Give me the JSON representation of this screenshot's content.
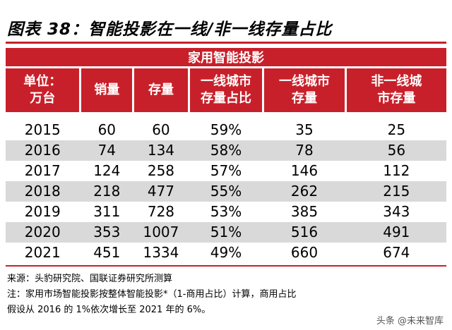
{
  "title": "图表 38：智能投影在一线/非一线存量占比",
  "band_label": "家用智能投影",
  "headers": [
    "单位：\n万台",
    "销量",
    "存量",
    "一线城市\n存量占比",
    "一线城市\n存量",
    "非一线城\n市存量"
  ],
  "rows": [
    [
      "2015",
      "60",
      "60",
      "59%",
      "35",
      "25"
    ],
    [
      "2016",
      "74",
      "134",
      "58%",
      "78",
      "56"
    ],
    [
      "2017",
      "124",
      "258",
      "57%",
      "146",
      "112"
    ],
    [
      "2018",
      "218",
      "477",
      "55%",
      "262",
      "215"
    ],
    [
      "2019",
      "311",
      "728",
      "53%",
      "385",
      "343"
    ],
    [
      "2020",
      "353",
      "1007",
      "51%",
      "516",
      "491"
    ],
    [
      "2021",
      "451",
      "1334",
      "49%",
      "660",
      "674"
    ]
  ],
  "source": "来源：头豹研究院、国联证券研究所测算",
  "note_line1": "注：家用市场智能投影按整体智能投影*（1-商用占比）计算，商用占比",
  "note_line2": "假设从 2016 的 1%依次增长至 2021 年的 6%。",
  "watermark": "头条 @未来智库",
  "colors": {
    "accent": "#c8202a",
    "row_alt": "#d9d9d9"
  }
}
